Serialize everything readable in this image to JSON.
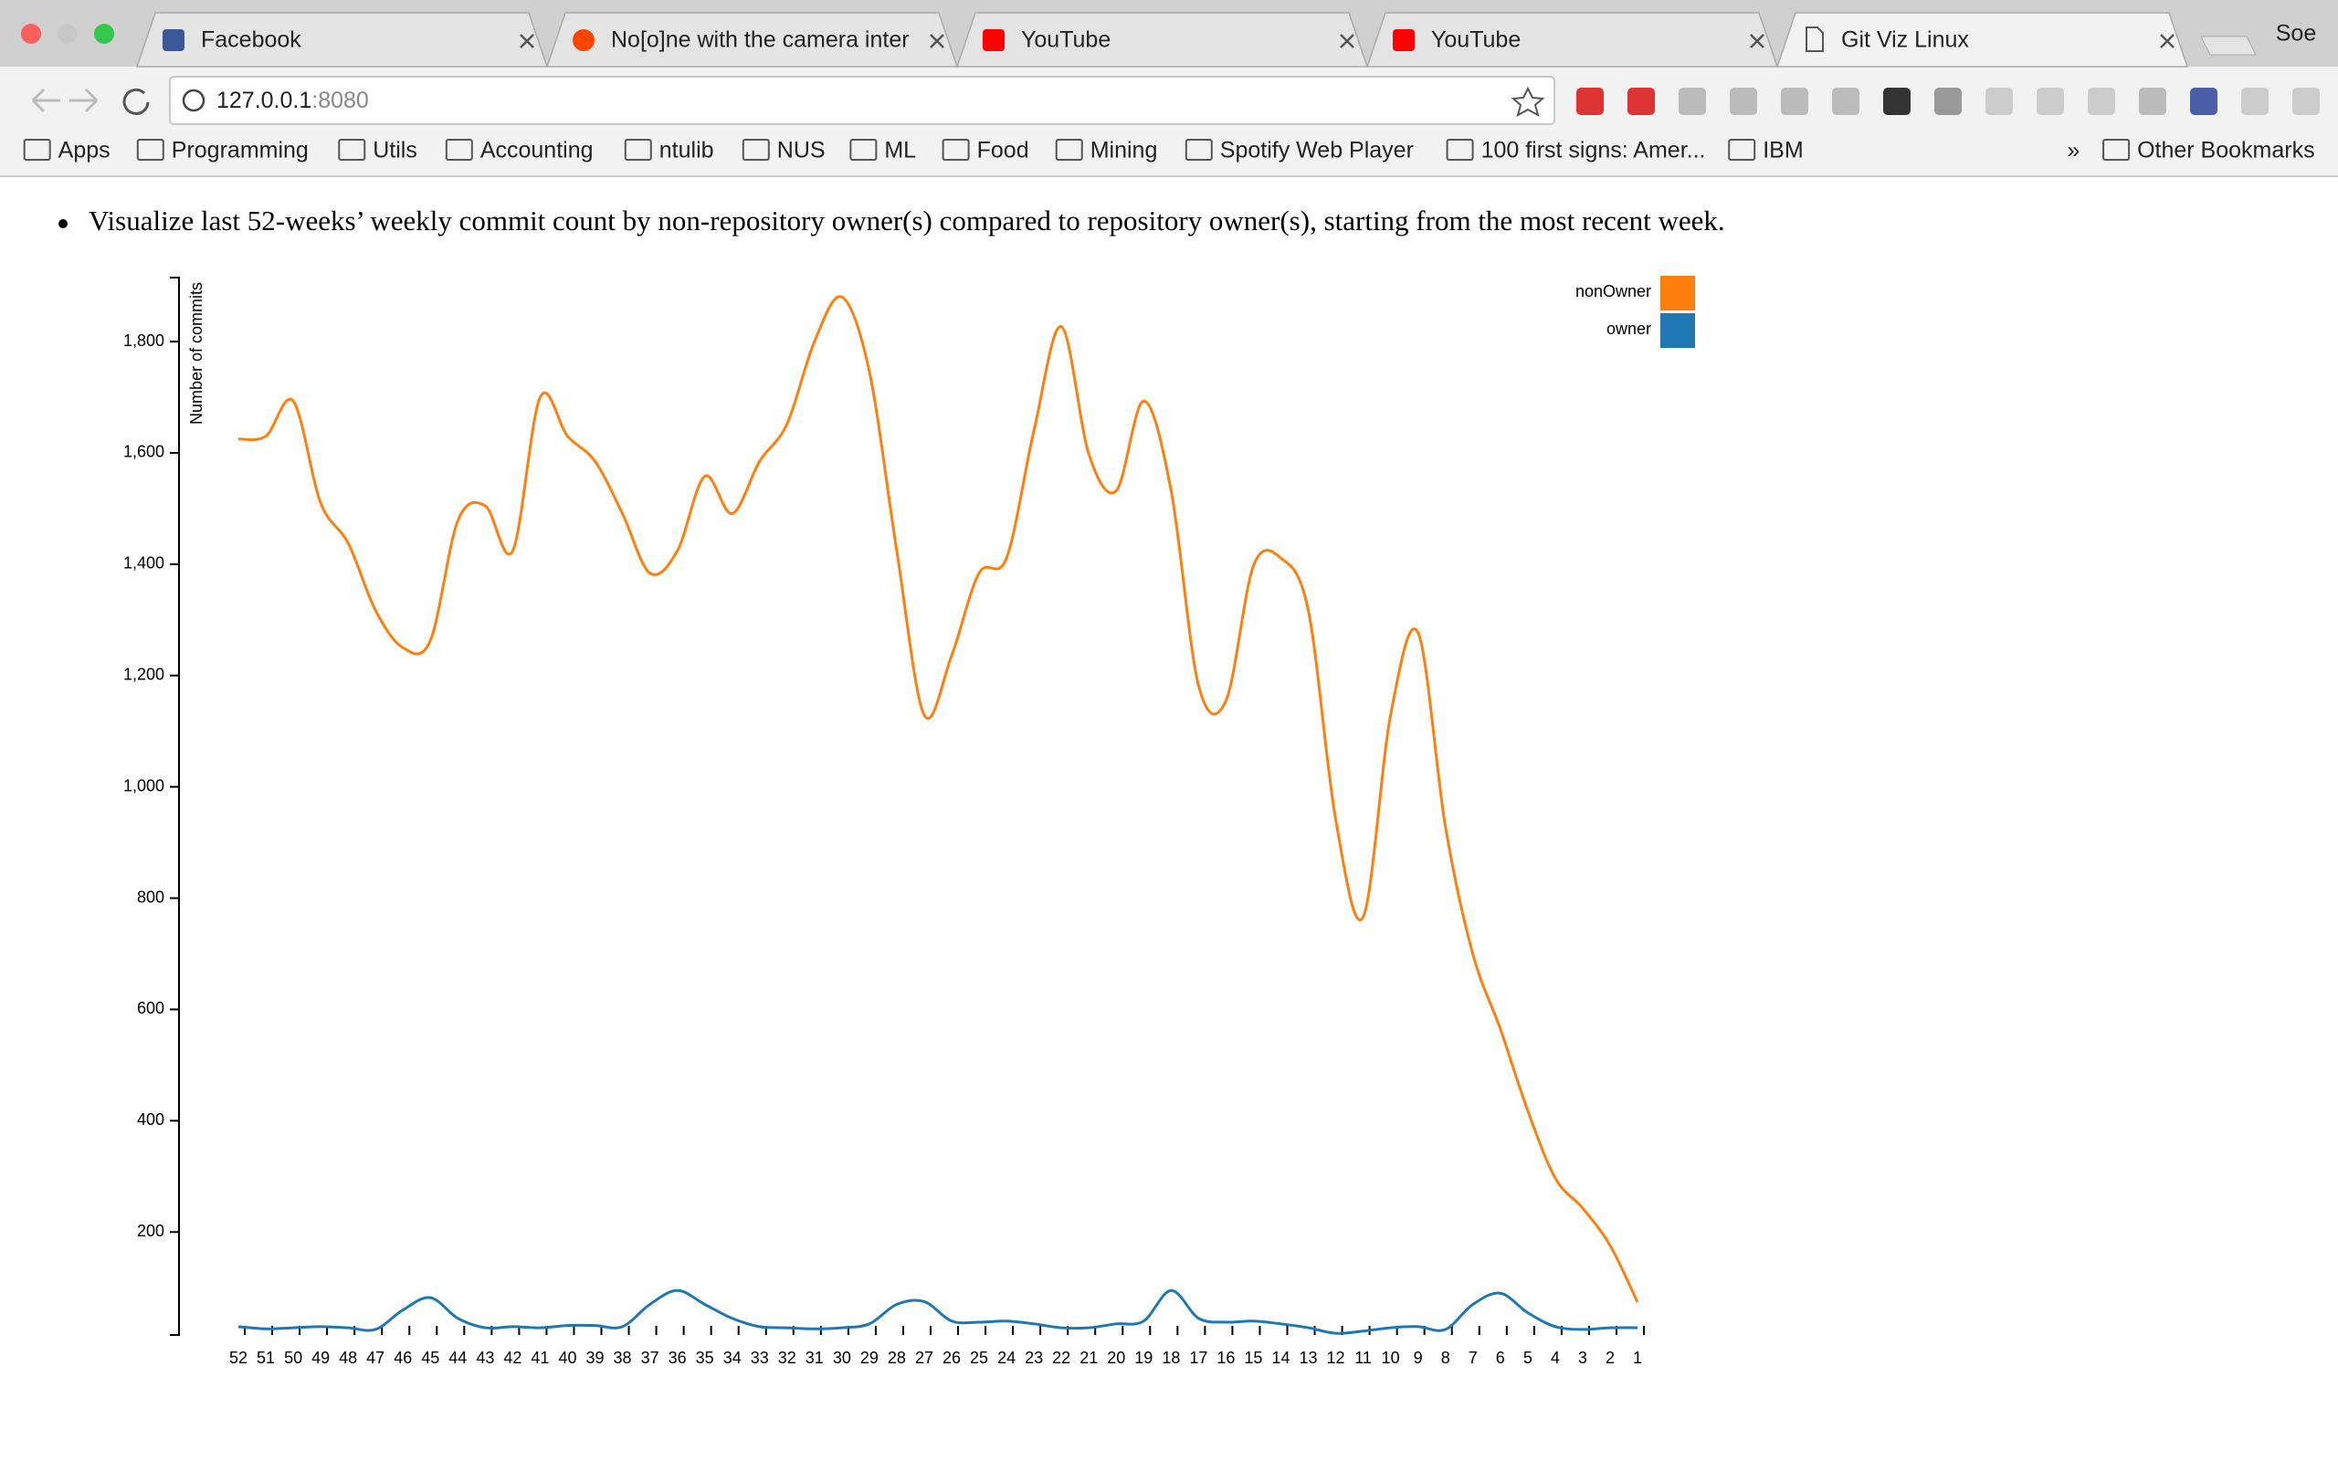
{
  "browser": {
    "tabs": [
      "Facebook",
      "No[o]ne with the camera inter",
      "YouTube",
      "YouTube",
      "Git Viz Linux"
    ],
    "profile": "Soe",
    "address": {
      "host": "127.0.0.1",
      "port": ":8080"
    },
    "bookmarks": [
      "Apps",
      "Programming",
      "Utils",
      "Accounting",
      "ntulib",
      "NUS",
      "ML",
      "Food",
      "Mining",
      "Spotify Web Player",
      "100 first signs: Amer...",
      "IBM",
      "»",
      "Other Bookmarks"
    ]
  },
  "content": {
    "bullet": "Visualize last 52-weeks’ weekly commit count by non-repository owner(s) compared to repository owner(s), starting from the most recent week."
  },
  "chart_data": {
    "type": "line",
    "y_label": "Number of commits",
    "categories": [
      "52",
      "51",
      "50",
      "49",
      "48",
      "47",
      "46",
      "45",
      "44",
      "43",
      "42",
      "41",
      "40",
      "39",
      "38",
      "37",
      "36",
      "35",
      "34",
      "33",
      "32",
      "31",
      "30",
      "29",
      "28",
      "27",
      "26",
      "25",
      "24",
      "23",
      "22",
      "21",
      "20",
      "19",
      "18",
      "17",
      "16",
      "15",
      "14",
      "13",
      "12",
      "11",
      "10",
      "9",
      "8",
      "7",
      "6",
      "5",
      "4",
      "3",
      "2",
      "1"
    ],
    "series": [
      {
        "name": "nonOwner",
        "color": "#ff7f0e",
        "values": [
          1625,
          1630,
          1693,
          1510,
          1438,
          1317,
          1250,
          1263,
          1478,
          1505,
          1424,
          1700,
          1630,
          1585,
          1491,
          1384,
          1424,
          1558,
          1491,
          1585,
          1652,
          1800,
          1880,
          1746,
          1424,
          1129,
          1236,
          1384,
          1411,
          1640,
          1827,
          1598,
          1532,
          1693,
          1532,
          1182,
          1155,
          1397,
          1411,
          1317,
          941,
          766,
          1129,
          1277,
          928,
          699,
          565,
          418,
          297,
          243,
          176,
          74
        ]
      },
      {
        "name": "owner",
        "color": "#1f77b4",
        "values": [
          30,
          26,
          28,
          30,
          28,
          25,
          60,
          82,
          45,
          28,
          30,
          28,
          32,
          32,
          30,
          70,
          95,
          70,
          45,
          30,
          28,
          26,
          28,
          35,
          70,
          75,
          40,
          38,
          40,
          35,
          28,
          28,
          35,
          40,
          95,
          45,
          38,
          40,
          35,
          28,
          18,
          22,
          28,
          30,
          25,
          70,
          90,
          55,
          30,
          25,
          28,
          28
        ]
      }
    ],
    "ylim": [
      15,
      1915
    ],
    "yticks": [
      200,
      400,
      600,
      800,
      {
        "value": 1000,
        "label": "1,000"
      },
      {
        "value": 1200,
        "label": "1,200"
      },
      {
        "value": 1400,
        "label": "1,400"
      },
      {
        "value": 1600,
        "label": "1,600"
      },
      {
        "value": 1800,
        "label": "1,800"
      }
    ],
    "legend": "top-right"
  }
}
